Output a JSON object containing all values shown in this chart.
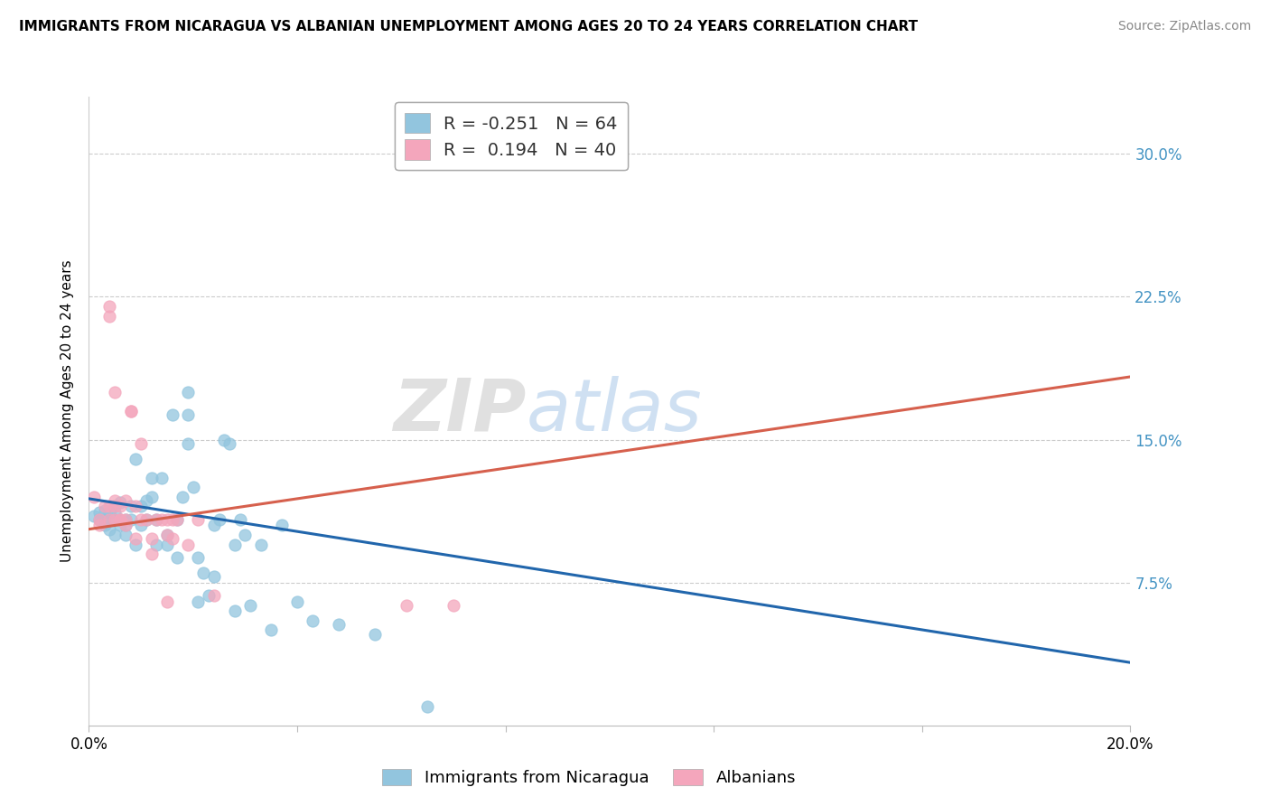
{
  "title": "IMMIGRANTS FROM NICARAGUA VS ALBANIAN UNEMPLOYMENT AMONG AGES 20 TO 24 YEARS CORRELATION CHART",
  "source": "Source: ZipAtlas.com",
  "ylabel": "Unemployment Among Ages 20 to 24 years",
  "xlim": [
    0.0,
    0.2
  ],
  "ylim": [
    0.0,
    0.33
  ],
  "y_ticks": [
    0.075,
    0.15,
    0.225,
    0.3
  ],
  "x_ticks": [
    0.0,
    0.04,
    0.08,
    0.12,
    0.16,
    0.2
  ],
  "x_label_ticks": [
    0.0,
    0.2
  ],
  "legend_r1": "-0.251",
  "legend_n1": "64",
  "legend_r2": "0.194",
  "legend_n2": "40",
  "blue_color": "#92c5de",
  "pink_color": "#f4a6bc",
  "line_blue": "#2166ac",
  "line_pink": "#d6604d",
  "tick_color_right": "#4393c3",
  "watermark": "ZIPatlas",
  "blue_scatter": [
    [
      0.001,
      0.11
    ],
    [
      0.002,
      0.112
    ],
    [
      0.002,
      0.108
    ],
    [
      0.003,
      0.113
    ],
    [
      0.003,
      0.107
    ],
    [
      0.003,
      0.105
    ],
    [
      0.004,
      0.112
    ],
    [
      0.004,
      0.108
    ],
    [
      0.004,
      0.103
    ],
    [
      0.005,
      0.115
    ],
    [
      0.005,
      0.108
    ],
    [
      0.005,
      0.112
    ],
    [
      0.005,
      0.1
    ],
    [
      0.006,
      0.117
    ],
    [
      0.006,
      0.105
    ],
    [
      0.006,
      0.108
    ],
    [
      0.007,
      0.1
    ],
    [
      0.007,
      0.108
    ],
    [
      0.007,
      0.105
    ],
    [
      0.008,
      0.115
    ],
    [
      0.008,
      0.108
    ],
    [
      0.009,
      0.095
    ],
    [
      0.009,
      0.14
    ],
    [
      0.01,
      0.105
    ],
    [
      0.01,
      0.115
    ],
    [
      0.011,
      0.108
    ],
    [
      0.011,
      0.118
    ],
    [
      0.012,
      0.13
    ],
    [
      0.012,
      0.12
    ],
    [
      0.013,
      0.108
    ],
    [
      0.013,
      0.095
    ],
    [
      0.014,
      0.13
    ],
    [
      0.015,
      0.095
    ],
    [
      0.015,
      0.1
    ],
    [
      0.016,
      0.163
    ],
    [
      0.017,
      0.108
    ],
    [
      0.017,
      0.088
    ],
    [
      0.018,
      0.12
    ],
    [
      0.019,
      0.175
    ],
    [
      0.019,
      0.163
    ],
    [
      0.019,
      0.148
    ],
    [
      0.02,
      0.125
    ],
    [
      0.021,
      0.065
    ],
    [
      0.021,
      0.088
    ],
    [
      0.022,
      0.08
    ],
    [
      0.023,
      0.068
    ],
    [
      0.024,
      0.078
    ],
    [
      0.024,
      0.105
    ],
    [
      0.025,
      0.108
    ],
    [
      0.026,
      0.15
    ],
    [
      0.027,
      0.148
    ],
    [
      0.028,
      0.095
    ],
    [
      0.028,
      0.06
    ],
    [
      0.029,
      0.108
    ],
    [
      0.03,
      0.1
    ],
    [
      0.031,
      0.063
    ],
    [
      0.033,
      0.095
    ],
    [
      0.035,
      0.05
    ],
    [
      0.037,
      0.105
    ],
    [
      0.04,
      0.065
    ],
    [
      0.043,
      0.055
    ],
    [
      0.048,
      0.053
    ],
    [
      0.055,
      0.048
    ],
    [
      0.065,
      0.01
    ]
  ],
  "pink_scatter": [
    [
      0.001,
      0.12
    ],
    [
      0.002,
      0.108
    ],
    [
      0.002,
      0.105
    ],
    [
      0.003,
      0.115
    ],
    [
      0.004,
      0.108
    ],
    [
      0.004,
      0.115
    ],
    [
      0.004,
      0.215
    ],
    [
      0.004,
      0.22
    ],
    [
      0.005,
      0.118
    ],
    [
      0.005,
      0.175
    ],
    [
      0.005,
      0.108
    ],
    [
      0.005,
      0.115
    ],
    [
      0.006,
      0.108
    ],
    [
      0.006,
      0.115
    ],
    [
      0.006,
      0.108
    ],
    [
      0.007,
      0.118
    ],
    [
      0.007,
      0.105
    ],
    [
      0.007,
      0.108
    ],
    [
      0.008,
      0.165
    ],
    [
      0.008,
      0.165
    ],
    [
      0.009,
      0.115
    ],
    [
      0.009,
      0.098
    ],
    [
      0.01,
      0.148
    ],
    [
      0.01,
      0.108
    ],
    [
      0.011,
      0.108
    ],
    [
      0.012,
      0.09
    ],
    [
      0.012,
      0.098
    ],
    [
      0.013,
      0.108
    ],
    [
      0.014,
      0.108
    ],
    [
      0.015,
      0.065
    ],
    [
      0.015,
      0.108
    ],
    [
      0.015,
      0.1
    ],
    [
      0.016,
      0.098
    ],
    [
      0.016,
      0.108
    ],
    [
      0.017,
      0.108
    ],
    [
      0.019,
      0.095
    ],
    [
      0.021,
      0.108
    ],
    [
      0.024,
      0.068
    ],
    [
      0.061,
      0.063
    ],
    [
      0.07,
      0.063
    ]
  ],
  "blue_trend_x": [
    0.0,
    0.2
  ],
  "blue_trend_y": [
    0.119,
    0.033
  ],
  "pink_trend_x": [
    0.0,
    0.2
  ],
  "pink_trend_y": [
    0.103,
    0.183
  ]
}
